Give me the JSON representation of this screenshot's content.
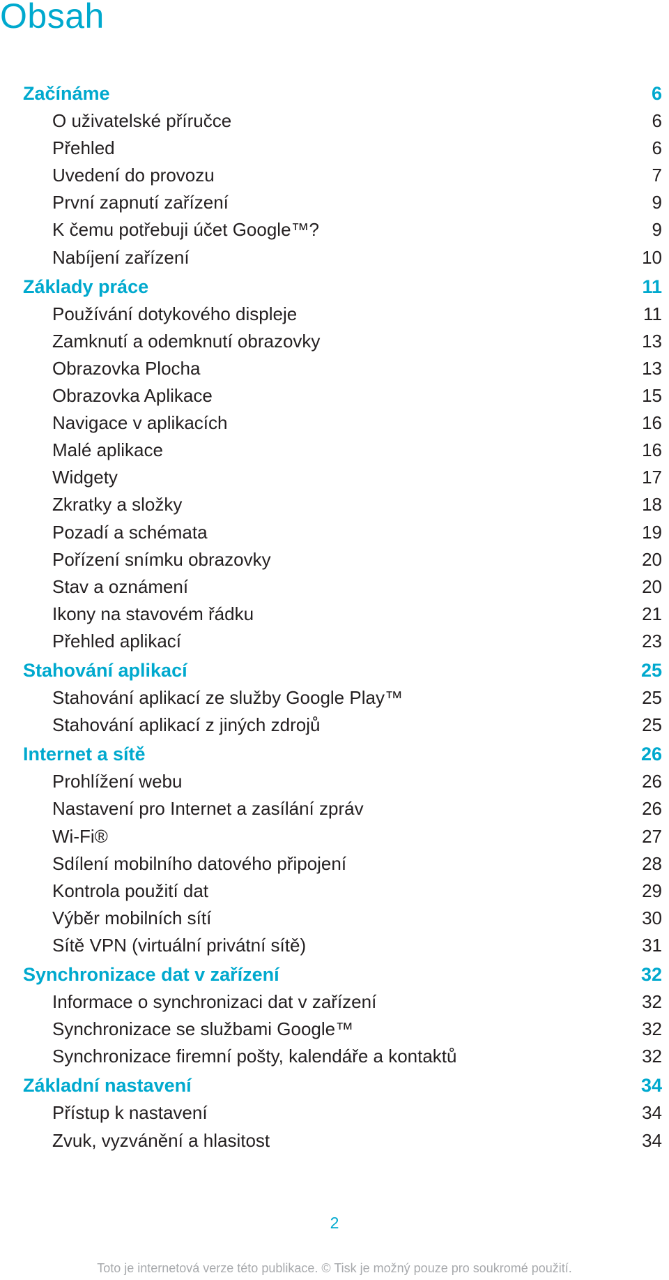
{
  "title": "Obsah",
  "toc": [
    {
      "text": "Začínáme",
      "page": "6",
      "level": 1
    },
    {
      "text": "O uživatelské příručce",
      "page": "6",
      "level": 2
    },
    {
      "text": "Přehled",
      "page": "6",
      "level": 2
    },
    {
      "text": "Uvedení do provozu",
      "page": "7",
      "level": 2
    },
    {
      "text": "První zapnutí zařízení",
      "page": "9",
      "level": 2
    },
    {
      "text": "K čemu potřebuji účet Google™?",
      "page": "9",
      "level": 2
    },
    {
      "text": "Nabíjení zařízení",
      "page": "10",
      "level": 2
    },
    {
      "text": "Základy práce",
      "page": "11",
      "level": 1
    },
    {
      "text": "Používání dotykového displeje",
      "page": "11",
      "level": 2
    },
    {
      "text": "Zamknutí a odemknutí obrazovky",
      "page": "13",
      "level": 2
    },
    {
      "text": "Obrazovka Plocha",
      "page": "13",
      "level": 2
    },
    {
      "text": "Obrazovka Aplikace",
      "page": "15",
      "level": 2
    },
    {
      "text": "Navigace v aplikacích",
      "page": "16",
      "level": 2
    },
    {
      "text": "Malé aplikace",
      "page": "16",
      "level": 2
    },
    {
      "text": "Widgety",
      "page": "17",
      "level": 2
    },
    {
      "text": "Zkratky a složky",
      "page": "18",
      "level": 2
    },
    {
      "text": "Pozadí a schémata",
      "page": "19",
      "level": 2
    },
    {
      "text": "Pořízení snímku obrazovky",
      "page": "20",
      "level": 2
    },
    {
      "text": "Stav a oznámení",
      "page": "20",
      "level": 2
    },
    {
      "text": "Ikony na stavovém řádku",
      "page": "21",
      "level": 2
    },
    {
      "text": "Přehled aplikací",
      "page": "23",
      "level": 2
    },
    {
      "text": "Stahování aplikací",
      "page": "25",
      "level": 1
    },
    {
      "text": "Stahování aplikací ze služby Google Play™",
      "page": "25",
      "level": 2
    },
    {
      "text": "Stahování aplikací z jiných zdrojů",
      "page": "25",
      "level": 2
    },
    {
      "text": "Internet a sítě",
      "page": "26",
      "level": 1
    },
    {
      "text": "Prohlížení webu",
      "page": "26",
      "level": 2
    },
    {
      "text": "Nastavení pro Internet a zasílání zpráv",
      "page": "26",
      "level": 2
    },
    {
      "text": "Wi-Fi®",
      "page": "27",
      "level": 2
    },
    {
      "text": "Sdílení mobilního datového připojení",
      "page": "28",
      "level": 2
    },
    {
      "text": "Kontrola použití dat",
      "page": "29",
      "level": 2
    },
    {
      "text": "Výběr mobilních sítí",
      "page": "30",
      "level": 2
    },
    {
      "text": "Sítě VPN (virtuální privátní sítě)",
      "page": "31",
      "level": 2
    },
    {
      "text": "Synchronizace dat v zařízení",
      "page": "32",
      "level": 1
    },
    {
      "text": "Informace o synchronizaci dat v zařízení",
      "page": "32",
      "level": 2
    },
    {
      "text": "Synchronizace se službami Google™",
      "page": "32",
      "level": 2
    },
    {
      "text": "Synchronizace firemní pošty, kalendáře a kontaktů",
      "page": "32",
      "level": 2
    },
    {
      "text": "Základní nastavení",
      "page": "34",
      "level": 1
    },
    {
      "text": "Přístup k nastavení",
      "page": "34",
      "level": 2
    },
    {
      "text": "Zvuk, vyzvánění a hlasitost",
      "page": "34",
      "level": 2
    }
  ],
  "page_number": "2",
  "footer": "Toto je internetová verze této publikace. © Tisk je možný pouze pro soukromé použití.",
  "colors": {
    "accent": "#00a9ce",
    "text": "#231f20",
    "footer": "#a7a9ac"
  }
}
